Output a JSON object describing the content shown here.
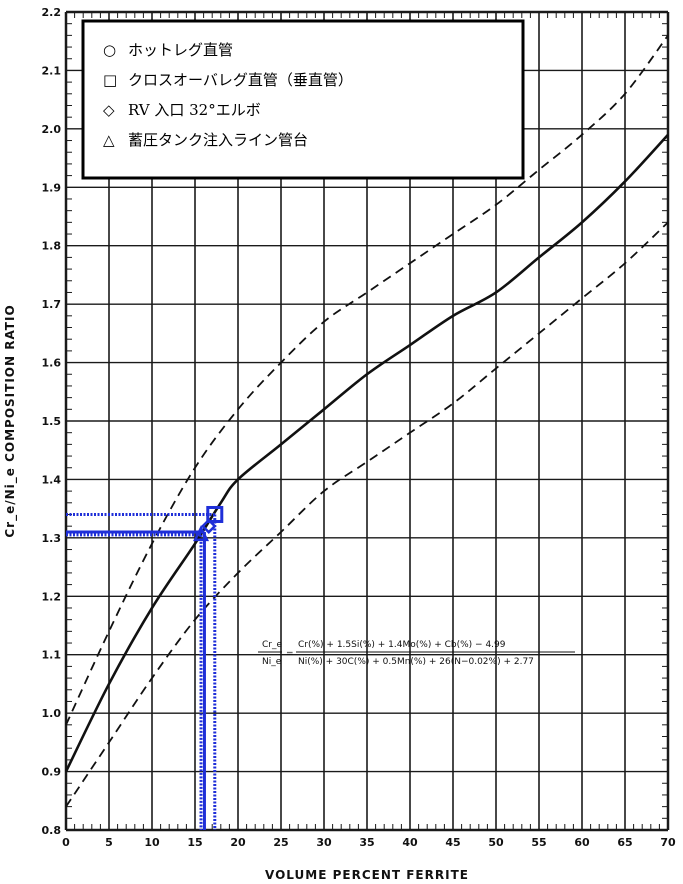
{
  "chart_data": {
    "type": "line",
    "xlabel": "VOLUME PERCENT FERRITE",
    "ylabel": "Cr_e/Ni_e COMPOSITION RATIO",
    "xlim": [
      0,
      70
    ],
    "ylim": [
      0.8,
      2.2
    ],
    "x_ticks": [
      "0",
      "5",
      "10",
      "15",
      "20",
      "25",
      "30",
      "35",
      "40",
      "45",
      "50",
      "55",
      "60",
      "65",
      "70"
    ],
    "y_ticks": [
      "0.8",
      "0.9",
      "1.0",
      "1.1",
      "1.2",
      "1.3",
      "1.4",
      "1.5",
      "1.6",
      "1.7",
      "1.8",
      "1.9",
      "2.0",
      "2.1",
      "2.2"
    ],
    "y_tick_labels": [
      "0.8",
      "0.9",
      "1.0",
      "1.1",
      "1.2",
      "1.3",
      "1.4",
      "1.5",
      "1.6",
      "1.7",
      "1.8",
      "1.9",
      "2.0",
      "2.1",
      "2.2"
    ],
    "grid": true,
    "series": [
      {
        "style": "solid",
        "points": [
          [
            0,
            0.9
          ],
          [
            5,
            1.05
          ],
          [
            10,
            1.18
          ],
          [
            15,
            1.29
          ],
          [
            18,
            1.36
          ],
          [
            20,
            1.4
          ],
          [
            25,
            1.46
          ],
          [
            30,
            1.52
          ],
          [
            35,
            1.58
          ],
          [
            40,
            1.63
          ],
          [
            45,
            1.68
          ],
          [
            50,
            1.72
          ],
          [
            55,
            1.78
          ],
          [
            60,
            1.84
          ],
          [
            65,
            1.91
          ],
          [
            70,
            1.99
          ]
        ]
      },
      {
        "style": "dashed",
        "points": [
          [
            0,
            0.98
          ],
          [
            5,
            1.14
          ],
          [
            10,
            1.29
          ],
          [
            15,
            1.42
          ],
          [
            20,
            1.52
          ],
          [
            25,
            1.6
          ],
          [
            30,
            1.67
          ],
          [
            35,
            1.72
          ],
          [
            40,
            1.77
          ],
          [
            45,
            1.82
          ],
          [
            50,
            1.87
          ],
          [
            55,
            1.93
          ],
          [
            60,
            1.99
          ],
          [
            65,
            2.06
          ],
          [
            70,
            2.16
          ]
        ]
      },
      {
        "style": "dashed",
        "points": [
          [
            0,
            0.84
          ],
          [
            5,
            0.95
          ],
          [
            10,
            1.06
          ],
          [
            15,
            1.16
          ],
          [
            20,
            1.24
          ],
          [
            25,
            1.31
          ],
          [
            30,
            1.38
          ],
          [
            35,
            1.43
          ],
          [
            40,
            1.48
          ],
          [
            45,
            1.53
          ],
          [
            50,
            1.59
          ],
          [
            55,
            1.65
          ],
          [
            60,
            1.71
          ],
          [
            65,
            1.77
          ],
          [
            70,
            1.84
          ]
        ]
      }
    ],
    "markers": [
      {
        "shape": "square",
        "x": 17.3,
        "y": 1.34
      },
      {
        "shape": "diamond",
        "x": 16.6,
        "y": 1.32
      },
      {
        "shape": "triangle",
        "x": 15.7,
        "y": 1.305
      }
    ],
    "guides": [
      {
        "x": 17.3,
        "y": 1.34,
        "style": "dotted"
      },
      {
        "x": 16.1,
        "y": 1.31,
        "style": "solid"
      },
      {
        "x": 15.7,
        "y": 1.305,
        "style": "dotted"
      }
    ],
    "colors": {
      "curve": "#111111",
      "marker": "#1f2fd8",
      "grid": "#1a1a1a"
    },
    "legend": {
      "placement": "top-left",
      "items": [
        {
          "symbol": "○",
          "label": "ホットレグ直管"
        },
        {
          "symbol": "□",
          "label": "クロスオーバレグ直管（垂直管）"
        },
        {
          "symbol": "◇",
          "label": "RV 入口 32°エルボ"
        },
        {
          "symbol": "△",
          "label": "蓄圧タンク注入ライン管台"
        }
      ]
    },
    "annotation": {
      "lhs_top": "Cr_e",
      "lhs_bottom": "Ni_e",
      "numerator": "Cr(%) + 1.5Si(%) + 1.4Mo(%) + Cb(%) − 4.99",
      "denominator": "Ni(%) + 30C(%) + 0.5Mn(%) + 26(N−0.02%) + 2.77"
    }
  }
}
